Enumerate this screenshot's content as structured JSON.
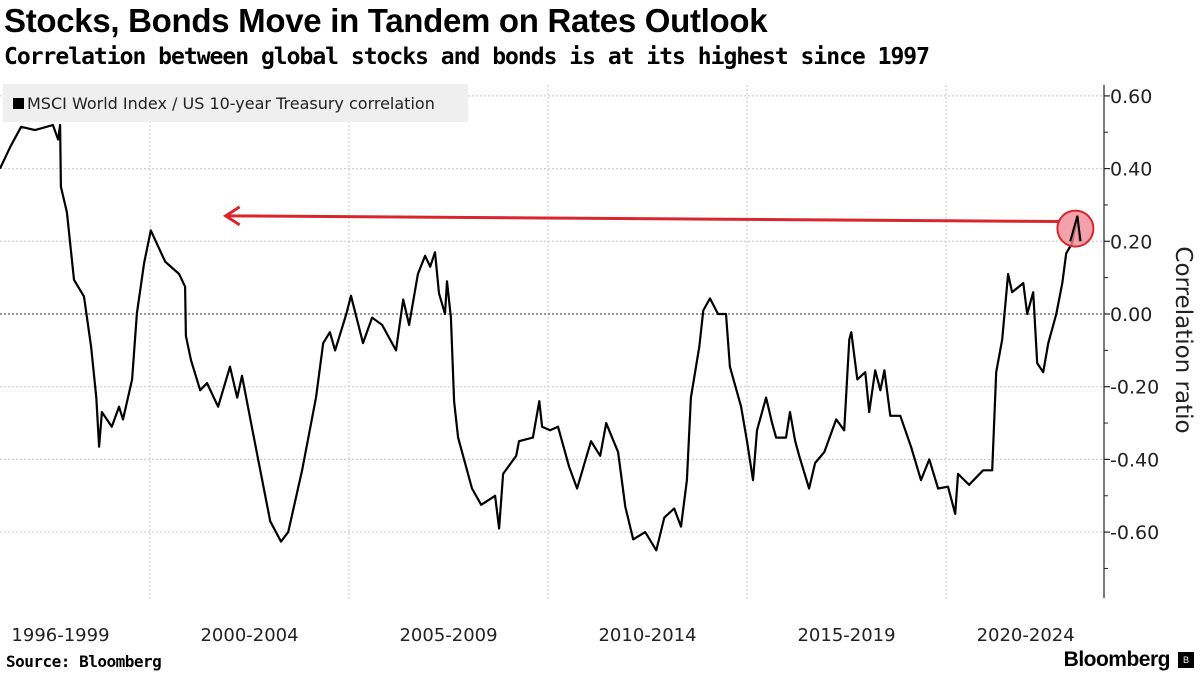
{
  "header": {
    "title": "Stocks, Bonds Move in Tandem on Rates Outlook",
    "subtitle": "Correlation between global stocks and bonds is at its highest since 1997"
  },
  "footer": {
    "source": "Source: Bloomberg",
    "logo": "Bloomberg"
  },
  "colors": {
    "line": "#000000",
    "highlight": "#d9262e",
    "highlight_fill": "#f08a96"
  },
  "chart_data": {
    "type": "line",
    "title": "Stocks, Bonds Move in Tandem on Rates Outlook",
    "ylabel": "Correlation ratio",
    "xlabel": "",
    "ylim": [
      -0.72,
      0.62
    ],
    "yticks": [
      {
        "v": 0.6,
        "label": "0.60"
      },
      {
        "v": 0.4,
        "label": "0.40"
      },
      {
        "v": 0.2,
        "label": "0.20"
      },
      {
        "v": 0.0,
        "label": "0.00"
      },
      {
        "v": -0.2,
        "label": "-0.20"
      },
      {
        "v": -0.4,
        "label": "-0.40"
      },
      {
        "v": -0.6,
        "label": "-0.60"
      }
    ],
    "xticks": [
      {
        "center": 1997.75,
        "label": "1996-1999"
      },
      {
        "center": 2002.5,
        "label": "2000-2004"
      },
      {
        "center": 2007.5,
        "label": "2005-2009"
      },
      {
        "center": 2012.5,
        "label": "2010-2014"
      },
      {
        "center": 2017.5,
        "label": "2015-2019"
      },
      {
        "center": 2022.0,
        "label": "2020-2024"
      }
    ],
    "grid_years": [
      2000,
      2005,
      2010,
      2015,
      2020
    ],
    "grid": true,
    "legend": {
      "position": "top-left",
      "entries": [
        "MSCI World Index / US 10-year Treasury correlation"
      ]
    },
    "annotation": {
      "type": "arrow",
      "from": [
        2023.3,
        0.26
      ],
      "to": [
        2001.9,
        0.27
      ],
      "note": "current level highest since 1997"
    },
    "series": [
      {
        "name": "MSCI World Index / US 10-year Treasury correlation",
        "x": [
          1996.23,
          1996.49,
          1996.76,
          1997.11,
          1997.56,
          1997.69,
          1997.74,
          1997.76,
          1997.91,
          1998.09,
          1998.34,
          1998.52,
          1998.65,
          1998.72,
          1998.79,
          1999.04,
          1999.22,
          1999.32,
          1999.55,
          1999.67,
          1999.85,
          2000.02,
          2000.38,
          2000.73,
          2000.88,
          2000.9,
          2001.03,
          2001.26,
          2001.43,
          2001.71,
          2002.01,
          2002.19,
          2002.31,
          2002.61,
          2003.02,
          2003.29,
          2003.47,
          2003.82,
          2004.17,
          2004.35,
          2004.52,
          2004.65,
          2004.93,
          2005.05,
          2005.35,
          2005.58,
          2005.83,
          2006.18,
          2006.36,
          2006.51,
          2006.73,
          2006.91,
          2007.04,
          2007.16,
          2007.26,
          2007.41,
          2007.46,
          2007.56,
          2007.64,
          2007.74,
          2008.09,
          2008.32,
          2008.67,
          2008.77,
          2008.87,
          2009.2,
          2009.27,
          2009.62,
          2009.78,
          2009.85,
          2010.05,
          2010.25,
          2010.53,
          2010.73,
          2011.08,
          2011.31,
          2011.46,
          2011.61,
          2011.76,
          2011.94,
          2012.14,
          2012.44,
          2012.72,
          2012.92,
          2013.17,
          2013.34,
          2013.49,
          2013.59,
          2013.8,
          2013.9,
          2014.07,
          2014.27,
          2014.47,
          2014.57,
          2014.85,
          2015.0,
          2015.15,
          2015.25,
          2015.48,
          2015.63,
          2015.73,
          2015.98,
          2016.08,
          2016.21,
          2016.31,
          2016.56,
          2016.71,
          2016.94,
          2017.24,
          2017.44,
          2017.57,
          2017.62,
          2017.77,
          2017.97,
          2018.07,
          2018.22,
          2018.35,
          2018.45,
          2018.6,
          2018.85,
          2019.12,
          2019.37,
          2019.58,
          2019.8,
          2020.05,
          2020.23,
          2020.3,
          2020.58,
          2020.93,
          2021.16,
          2021.26,
          2021.41,
          2021.56,
          2021.66,
          2021.94,
          2022.04,
          2022.19,
          2022.29,
          2022.44,
          2022.57,
          2022.77,
          2022.92,
          2023.02,
          2023.17,
          2023.3,
          2023.35
        ],
        "y": [
          0.4,
          0.46,
          0.515,
          0.506,
          0.52,
          0.48,
          0.52,
          0.35,
          0.28,
          0.094,
          0.048,
          -0.09,
          -0.23,
          -0.365,
          -0.27,
          -0.31,
          -0.255,
          -0.29,
          -0.18,
          0.002,
          0.14,
          0.23,
          0.144,
          0.11,
          0.075,
          -0.06,
          -0.127,
          -0.21,
          -0.19,
          -0.255,
          -0.145,
          -0.23,
          -0.17,
          -0.34,
          -0.57,
          -0.626,
          -0.6,
          -0.43,
          -0.23,
          -0.08,
          -0.05,
          -0.1,
          0.0,
          0.05,
          -0.08,
          -0.01,
          -0.03,
          -0.1,
          0.04,
          -0.03,
          0.11,
          0.16,
          0.13,
          0.17,
          0.057,
          0.0,
          0.09,
          -0.01,
          -0.24,
          -0.34,
          -0.48,
          -0.525,
          -0.5,
          -0.59,
          -0.44,
          -0.39,
          -0.35,
          -0.34,
          -0.24,
          -0.31,
          -0.32,
          -0.31,
          -0.42,
          -0.48,
          -0.35,
          -0.39,
          -0.3,
          -0.34,
          -0.38,
          -0.53,
          -0.62,
          -0.6,
          -0.65,
          -0.56,
          -0.535,
          -0.585,
          -0.457,
          -0.23,
          -0.09,
          0.01,
          0.043,
          0.0,
          0.0,
          -0.145,
          -0.255,
          -0.35,
          -0.457,
          -0.32,
          -0.23,
          -0.3,
          -0.34,
          -0.34,
          -0.27,
          -0.35,
          -0.39,
          -0.48,
          -0.41,
          -0.38,
          -0.29,
          -0.32,
          -0.07,
          -0.05,
          -0.18,
          -0.16,
          -0.27,
          -0.155,
          -0.21,
          -0.155,
          -0.28,
          -0.28,
          -0.365,
          -0.457,
          -0.4,
          -0.48,
          -0.475,
          -0.55,
          -0.44,
          -0.47,
          -0.43,
          -0.43,
          -0.16,
          -0.07,
          0.11,
          0.06,
          0.085,
          0.0,
          0.06,
          -0.135,
          -0.16,
          -0.08,
          0.0,
          0.085,
          0.167,
          0.195,
          0.27,
          0.2
        ]
      }
    ]
  }
}
